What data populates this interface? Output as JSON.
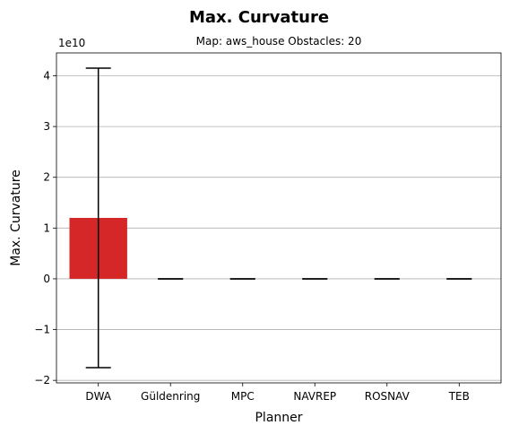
{
  "chart_data": {
    "type": "bar",
    "title": "Max. Curvature",
    "subtitle": "Map: aws_house Obstacles: 20",
    "xlabel": "Planner",
    "ylabel": "Max. Curvature",
    "y_offset_label": "1e10",
    "categories": [
      "DWA",
      "Güldenring",
      "MPC",
      "NAVREP",
      "ROSNAV",
      "TEB"
    ],
    "values": [
      1.2,
      0.0,
      0.0,
      0.0,
      0.0,
      0.0
    ],
    "error_low": [
      -1.75,
      0.0,
      0.0,
      0.0,
      0.0,
      0.0
    ],
    "error_high": [
      4.15,
      0.0,
      0.0,
      0.0,
      0.0,
      0.0
    ],
    "ylim": [
      -2.05,
      4.45
    ],
    "yticks": [
      -2,
      -1,
      0,
      1,
      2,
      3,
      4
    ],
    "ytick_labels": [
      "−2",
      "−1",
      "0",
      "1",
      "2",
      "3",
      "4"
    ],
    "grid": "y",
    "bar_color": "#d62728"
  }
}
